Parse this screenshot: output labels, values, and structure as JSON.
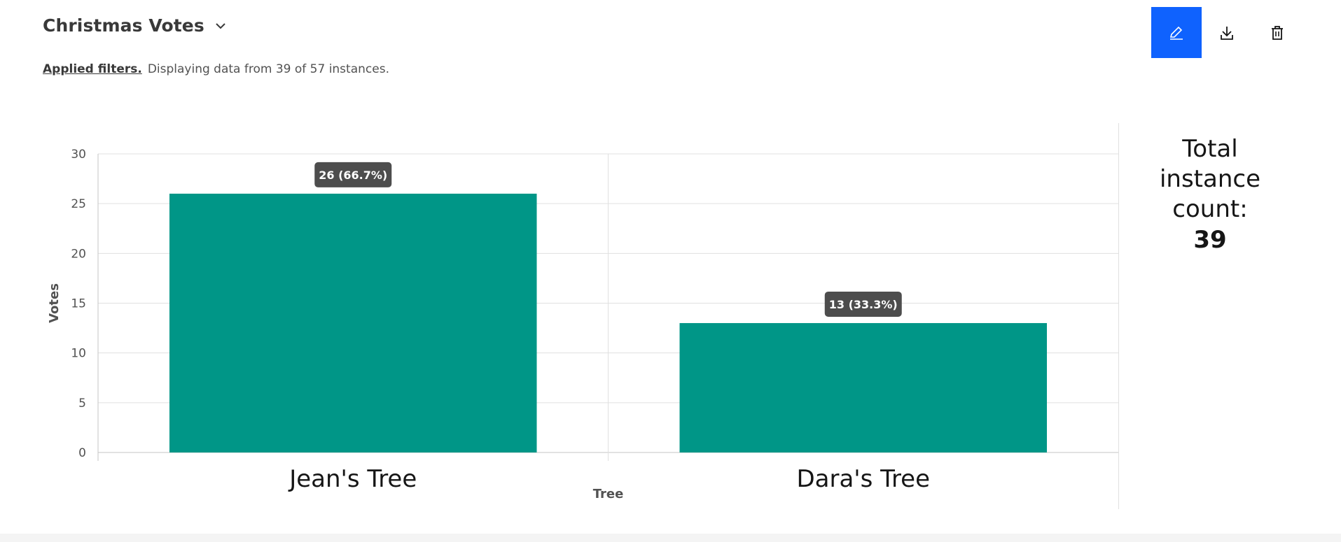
{
  "header": {
    "title": "Christmas Votes"
  },
  "filters": {
    "link_label": "Applied filters.",
    "summary": "Displaying data from 39 of 57 instances."
  },
  "toolbar": {
    "edit_icon": "pencil-icon",
    "download_icon": "download-icon",
    "delete_icon": "trash-icon",
    "accent_color": "#0f62fe"
  },
  "summary": {
    "label": "Total instance count:",
    "value": "39"
  },
  "chart_data": {
    "type": "bar",
    "categories": [
      "Jean's Tree",
      "Dara's Tree"
    ],
    "values": [
      26,
      13
    ],
    "data_labels": [
      "26 (66.7%)",
      "13 (33.3%)"
    ],
    "xlabel": "Tree",
    "ylabel": "Votes",
    "ylim": [
      0,
      30
    ],
    "yticks": [
      0,
      5,
      10,
      15,
      20,
      25,
      30
    ],
    "grid": true,
    "bar_color": "#009687",
    "label_bg_color": "#4d4d4d"
  }
}
